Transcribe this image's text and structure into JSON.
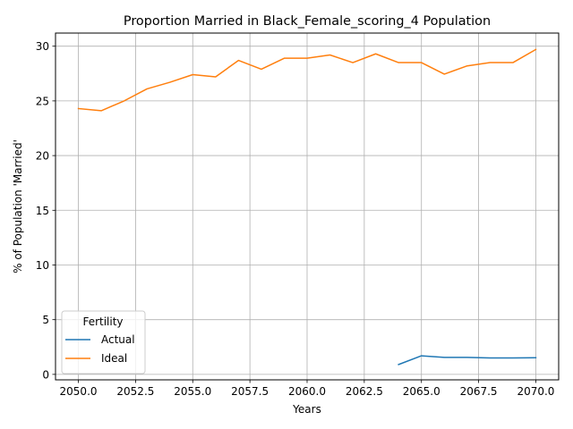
{
  "chart_data": {
    "type": "line",
    "title": "Proportion Married in Black_Female_scoring_4 Population",
    "xlabel": "Years",
    "ylabel": "% of Population 'Married'",
    "xlim": [
      2049,
      2071
    ],
    "ylim": [
      -0.5,
      31.2
    ],
    "xticks": [
      2050.0,
      2052.5,
      2055.0,
      2057.5,
      2060.0,
      2062.5,
      2065.0,
      2067.5,
      2070.0
    ],
    "xtick_labels": [
      "2050.0",
      "2052.5",
      "2055.0",
      "2057.5",
      "2060.0",
      "2062.5",
      "2065.0",
      "2067.5",
      "2070.0"
    ],
    "yticks": [
      0,
      5,
      10,
      15,
      20,
      25,
      30
    ],
    "ytick_labels": [
      "0",
      "5",
      "10",
      "15",
      "20",
      "25",
      "30"
    ],
    "grid": true,
    "legend": {
      "title": "Fertility",
      "placement": "lower-left"
    },
    "series": [
      {
        "name": "Actual",
        "color": "#1f77b4",
        "x": [
          2064,
          2065,
          2066,
          2067,
          2068,
          2069,
          2070
        ],
        "y": [
          0.9,
          1.7,
          1.55,
          1.55,
          1.5,
          1.5,
          1.52
        ]
      },
      {
        "name": "Ideal",
        "color": "#ff7f0e",
        "x": [
          2050,
          2051,
          2052,
          2053,
          2054,
          2055,
          2056,
          2057,
          2058,
          2059,
          2060,
          2061,
          2062,
          2063,
          2064,
          2065,
          2066,
          2067,
          2068,
          2069,
          2070
        ],
        "y": [
          24.3,
          24.1,
          25.0,
          26.1,
          26.7,
          27.4,
          27.2,
          28.7,
          27.9,
          28.9,
          28.9,
          29.2,
          28.5,
          29.3,
          28.5,
          28.5,
          27.45,
          28.2,
          28.5,
          28.5,
          29.7
        ]
      }
    ]
  }
}
